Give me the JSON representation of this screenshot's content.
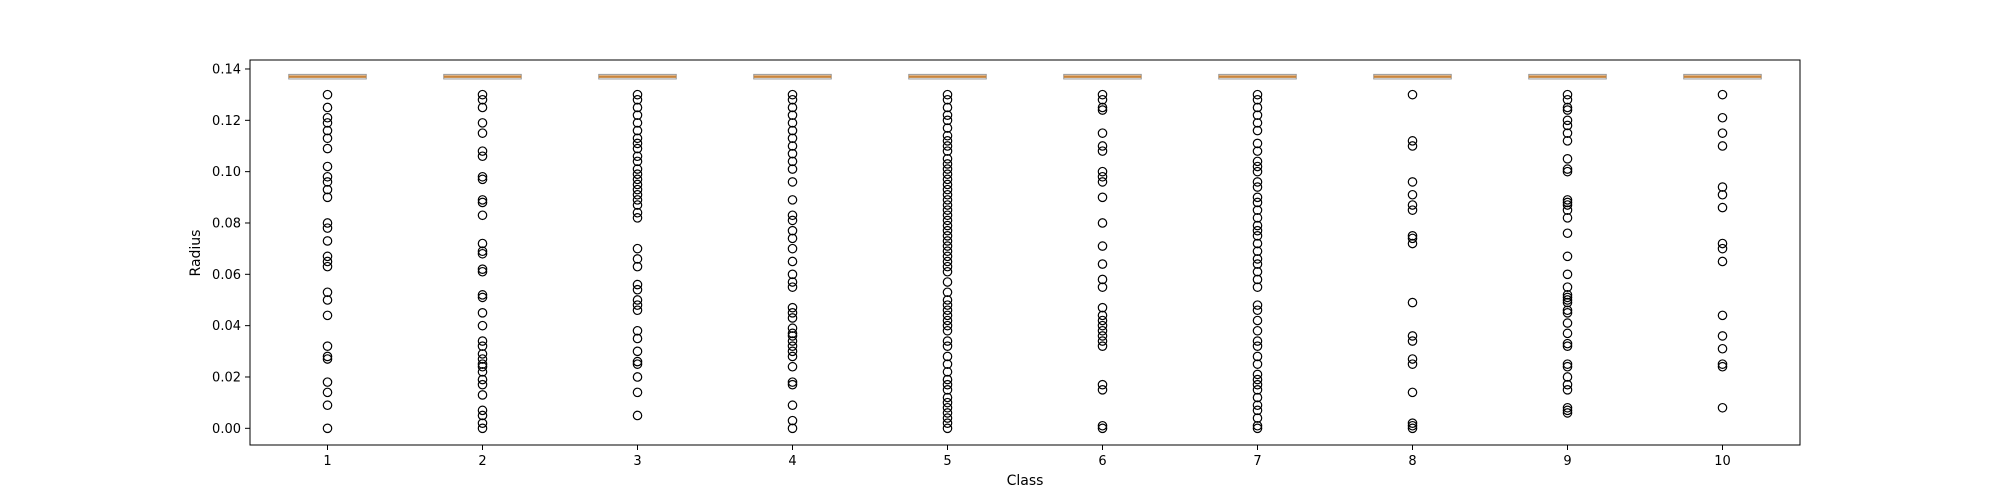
{
  "chart_data": {
    "type": "box",
    "xlabel": "Class",
    "ylabel": "Radius",
    "ylim": [
      -0.0065,
      0.1435
    ],
    "yticks": [
      0.0,
      0.02,
      0.04,
      0.06,
      0.08,
      0.1,
      0.12,
      0.14
    ],
    "ytick_labels": [
      "0.00",
      "0.02",
      "0.04",
      "0.06",
      "0.08",
      "0.10",
      "0.12",
      "0.14"
    ],
    "categories": [
      "1",
      "2",
      "3",
      "4",
      "5",
      "6",
      "7",
      "8",
      "9",
      "10"
    ],
    "box_color": "#c8843c",
    "outlier_color": "#000000",
    "grid": false,
    "legend": "none",
    "boxes": [
      {
        "median": 0.137,
        "q1": 0.1365,
        "q3": 0.1375,
        "outliers": [
          0.13,
          0.125,
          0.121,
          0.119,
          0.116,
          0.113,
          0.109,
          0.102,
          0.098,
          0.096,
          0.093,
          0.09,
          0.08,
          0.078,
          0.073,
          0.067,
          0.065,
          0.063,
          0.053,
          0.05,
          0.044,
          0.032,
          0.028,
          0.027,
          0.018,
          0.014,
          0.009,
          0.0
        ]
      },
      {
        "median": 0.137,
        "q1": 0.1365,
        "q3": 0.1375,
        "outliers": [
          0.13,
          0.128,
          0.125,
          0.119,
          0.115,
          0.108,
          0.106,
          0.098,
          0.097,
          0.089,
          0.088,
          0.083,
          0.072,
          0.069,
          0.068,
          0.062,
          0.061,
          0.052,
          0.051,
          0.045,
          0.04,
          0.034,
          0.032,
          0.029,
          0.027,
          0.025,
          0.024,
          0.022,
          0.019,
          0.017,
          0.013,
          0.007,
          0.005,
          0.002,
          0.0
        ]
      },
      {
        "median": 0.137,
        "q1": 0.1365,
        "q3": 0.1375,
        "outliers": [
          0.13,
          0.128,
          0.125,
          0.122,
          0.119,
          0.116,
          0.113,
          0.111,
          0.109,
          0.106,
          0.104,
          0.101,
          0.099,
          0.097,
          0.095,
          0.093,
          0.091,
          0.089,
          0.087,
          0.084,
          0.082,
          0.07,
          0.066,
          0.063,
          0.056,
          0.054,
          0.05,
          0.048,
          0.046,
          0.038,
          0.035,
          0.03,
          0.026,
          0.025,
          0.02,
          0.014,
          0.005
        ]
      },
      {
        "median": 0.137,
        "q1": 0.1365,
        "q3": 0.1375,
        "outliers": [
          0.13,
          0.128,
          0.125,
          0.122,
          0.119,
          0.116,
          0.113,
          0.11,
          0.107,
          0.104,
          0.101,
          0.096,
          0.089,
          0.083,
          0.081,
          0.077,
          0.074,
          0.07,
          0.065,
          0.06,
          0.057,
          0.055,
          0.047,
          0.045,
          0.043,
          0.039,
          0.037,
          0.036,
          0.034,
          0.032,
          0.03,
          0.028,
          0.024,
          0.018,
          0.017,
          0.009,
          0.003,
          0.0
        ]
      },
      {
        "median": 0.137,
        "q1": 0.1365,
        "q3": 0.1375,
        "outliers": [
          0.13,
          0.128,
          0.125,
          0.122,
          0.12,
          0.117,
          0.114,
          0.112,
          0.11,
          0.108,
          0.105,
          0.103,
          0.101,
          0.099,
          0.097,
          0.095,
          0.093,
          0.091,
          0.089,
          0.087,
          0.085,
          0.083,
          0.081,
          0.079,
          0.077,
          0.075,
          0.073,
          0.071,
          0.069,
          0.067,
          0.065,
          0.063,
          0.061,
          0.057,
          0.053,
          0.05,
          0.048,
          0.046,
          0.044,
          0.042,
          0.04,
          0.038,
          0.034,
          0.032,
          0.028,
          0.025,
          0.022,
          0.019,
          0.017,
          0.015,
          0.012,
          0.01,
          0.008,
          0.006,
          0.004,
          0.002,
          0.0
        ]
      },
      {
        "median": 0.137,
        "q1": 0.1365,
        "q3": 0.1375,
        "outliers": [
          0.13,
          0.128,
          0.125,
          0.124,
          0.115,
          0.11,
          0.108,
          0.1,
          0.098,
          0.096,
          0.09,
          0.08,
          0.071,
          0.064,
          0.058,
          0.055,
          0.047,
          0.044,
          0.042,
          0.04,
          0.038,
          0.036,
          0.034,
          0.032,
          0.017,
          0.015,
          0.001,
          0.0
        ]
      },
      {
        "median": 0.137,
        "q1": 0.1365,
        "q3": 0.1375,
        "outliers": [
          0.13,
          0.128,
          0.125,
          0.122,
          0.119,
          0.116,
          0.111,
          0.108,
          0.104,
          0.102,
          0.1,
          0.096,
          0.094,
          0.09,
          0.088,
          0.085,
          0.082,
          0.079,
          0.077,
          0.075,
          0.072,
          0.069,
          0.066,
          0.064,
          0.061,
          0.058,
          0.055,
          0.048,
          0.046,
          0.042,
          0.038,
          0.034,
          0.032,
          0.028,
          0.025,
          0.021,
          0.019,
          0.017,
          0.015,
          0.012,
          0.009,
          0.007,
          0.004,
          0.001,
          0.0
        ]
      },
      {
        "median": 0.137,
        "q1": 0.1365,
        "q3": 0.1375,
        "outliers": [
          0.13,
          0.112,
          0.11,
          0.096,
          0.091,
          0.087,
          0.085,
          0.075,
          0.074,
          0.072,
          0.049,
          0.036,
          0.034,
          0.027,
          0.025,
          0.014,
          0.002,
          0.001,
          0.0
        ]
      },
      {
        "median": 0.137,
        "q1": 0.1365,
        "q3": 0.1375,
        "outliers": [
          0.13,
          0.128,
          0.125,
          0.124,
          0.12,
          0.118,
          0.115,
          0.112,
          0.105,
          0.101,
          0.1,
          0.089,
          0.088,
          0.087,
          0.085,
          0.082,
          0.076,
          0.067,
          0.06,
          0.055,
          0.052,
          0.051,
          0.05,
          0.049,
          0.046,
          0.045,
          0.041,
          0.037,
          0.033,
          0.032,
          0.025,
          0.024,
          0.02,
          0.017,
          0.015,
          0.008,
          0.007,
          0.006
        ]
      },
      {
        "median": 0.137,
        "q1": 0.1365,
        "q3": 0.1375,
        "outliers": [
          0.13,
          0.121,
          0.115,
          0.11,
          0.094,
          0.091,
          0.086,
          0.072,
          0.07,
          0.065,
          0.044,
          0.036,
          0.031,
          0.025,
          0.024,
          0.008
        ]
      }
    ]
  }
}
